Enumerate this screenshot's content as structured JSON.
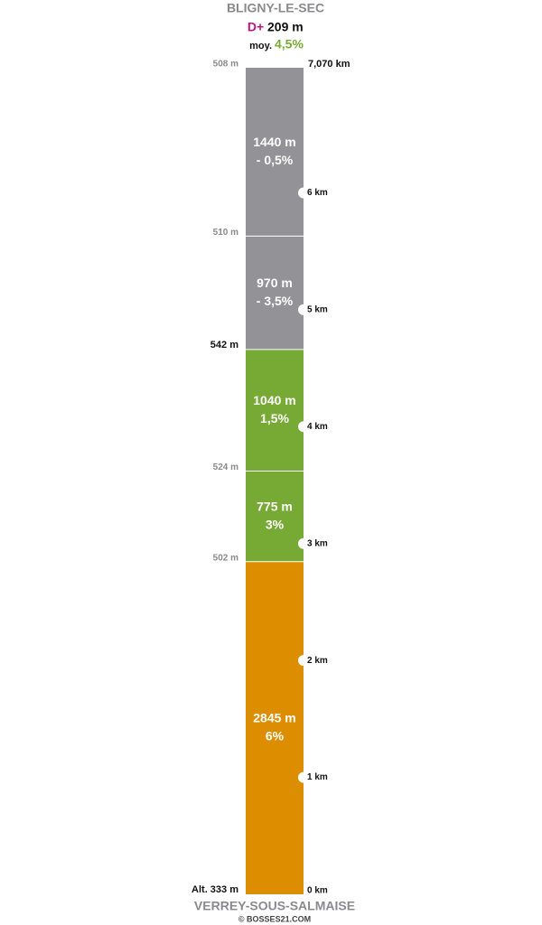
{
  "header": {
    "start": "BLIGNY-LE-SEC",
    "gain_prefix": "D+",
    "gain": "209 m",
    "avg_prefix": "moy.",
    "avg": "4,5%"
  },
  "top": {
    "altitude": "508 m",
    "distance": "7,070 km"
  },
  "segments": [
    {
      "length": 2845,
      "length_label": "2845 m",
      "grade_label": "6%",
      "start_altitude": "Alt. 333 m",
      "altitude_strong": true,
      "color": "#dc8e00"
    },
    {
      "length": 775,
      "length_label": "775 m",
      "grade_label": "3%",
      "start_altitude": "502 m",
      "altitude_strong": false,
      "color": "#76aa35"
    },
    {
      "length": 1040,
      "length_label": "1040 m",
      "grade_label": "1,5%",
      "start_altitude": "524 m",
      "altitude_strong": false,
      "color": "#76aa35"
    },
    {
      "length": 970,
      "length_label": "970 m",
      "grade_label": "- 3,5%",
      "start_altitude": "542 m",
      "altitude_strong": true,
      "color": "#939297"
    },
    {
      "length": 1440,
      "length_label": "1440 m",
      "grade_label": "- 0,5%",
      "start_altitude": "510 m",
      "altitude_strong": false,
      "color": "#939297"
    }
  ],
  "km_markers": [
    {
      "km": 0,
      "label": "0 km"
    },
    {
      "km": 1,
      "label": "1 km"
    },
    {
      "km": 2,
      "label": "2 km"
    },
    {
      "km": 3,
      "label": "3 km"
    },
    {
      "km": 4,
      "label": "4 km"
    },
    {
      "km": 5,
      "label": "5 km"
    },
    {
      "km": 6,
      "label": "6 km"
    }
  ],
  "footer": {
    "finish": "VERREY-SOUS-SALMAISE",
    "credit": "© BOSSES21.COM"
  }
}
